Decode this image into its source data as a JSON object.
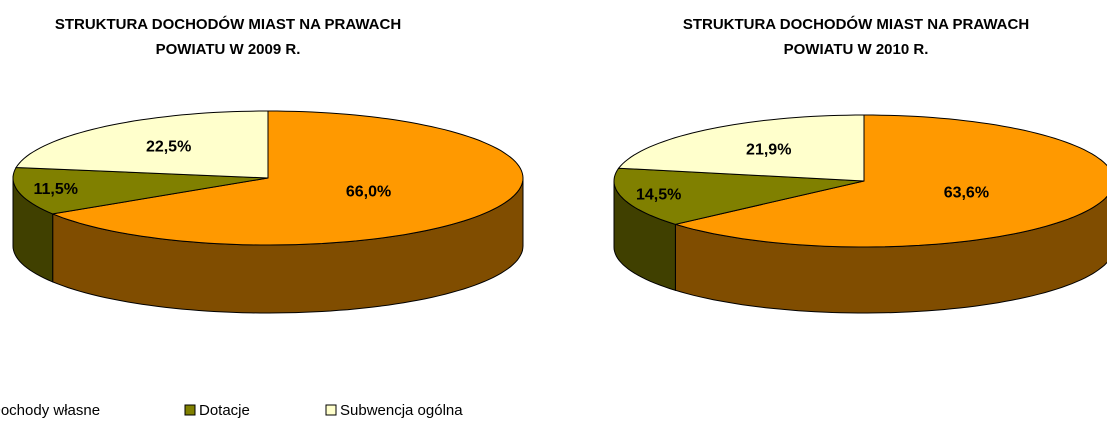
{
  "chart_data": [
    {
      "type": "pie",
      "title": "STRUKTURA DOCHODÓW MIAST NA PRAWACH POWIATU W 2009 R.",
      "values": [
        66.0,
        11.5,
        22.5
      ],
      "value_labels": [
        "66,0%",
        "11,5%",
        "22,5%"
      ]
    },
    {
      "type": "pie",
      "title": "STRUKTURA DOCHODÓW MIAST NA PRAWACH POWIATU W 2010 R.",
      "values": [
        63.6,
        14.5,
        21.9
      ],
      "value_labels": [
        "63,6%",
        "14,5%",
        "21,9%"
      ]
    }
  ],
  "legend": {
    "categories": [
      "Dochody własne",
      "Dotacje",
      "Subwencja ogólna"
    ],
    "colors": [
      "#ff9900",
      "#808000",
      "#ffffcc"
    ],
    "position": "bottom"
  }
}
